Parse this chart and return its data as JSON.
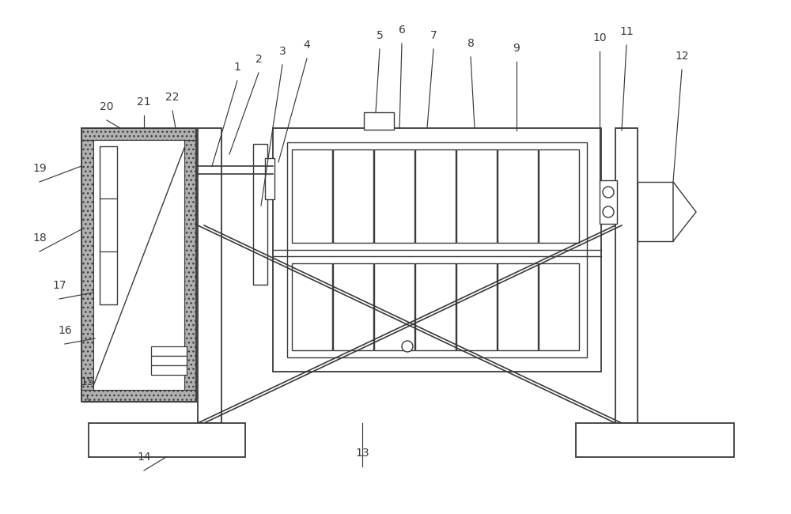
{
  "bg_color": "#ffffff",
  "line_color": "#3a3a3a",
  "label_color": "#3a3a3a",
  "label_fontsize": 10,
  "figsize": [
    10.0,
    6.5
  ],
  "dpi": 100
}
